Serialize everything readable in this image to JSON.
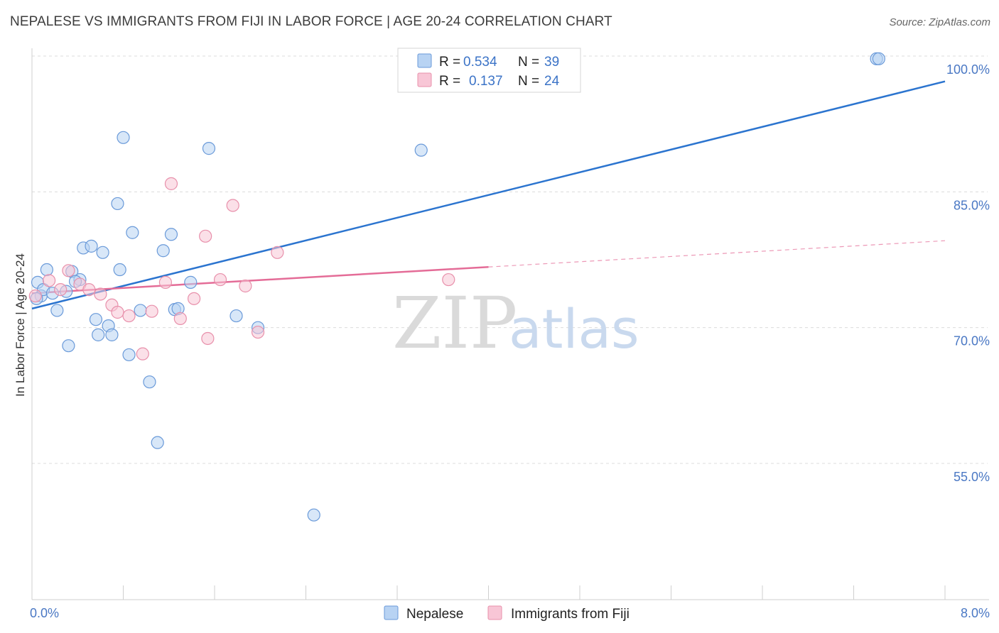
{
  "title": "NEPALESE VS IMMIGRANTS FROM FIJI IN LABOR FORCE | AGE 20-24 CORRELATION CHART",
  "source": "Source: ZipAtlas.com",
  "watermark": {
    "zip": "ZIP",
    "atlas": "atlas"
  },
  "colors": {
    "blue_fill": "#b8d3f3",
    "blue_stroke": "#6a9ad9",
    "blue_line": "#2b74cf",
    "pink_fill": "#f8c6d6",
    "pink_stroke": "#e890ab",
    "pink_line": "#e46c97",
    "tick_text": "#4a78c4",
    "grid": "#dcdcdc"
  },
  "legend": {
    "rows": [
      {
        "series": "blue",
        "r_label": "R =",
        "r_value": "0.534",
        "n_label": "N =",
        "n_value": "39"
      },
      {
        "series": "pink",
        "r_label": "R =",
        "r_value": "0.137",
        "n_label": "N =",
        "n_value": "24"
      }
    ]
  },
  "chart_data": {
    "type": "scatter",
    "title": "NEPALESE VS IMMIGRANTS FROM FIJI IN LABOR FORCE | AGE 20-24 CORRELATION CHART",
    "xlabel": "",
    "ylabel": "In Labor Force | Age 20-24",
    "xlim": [
      0,
      8
    ],
    "ylim": [
      40,
      101.5
    ],
    "x_tick_labels": [
      "0.0%",
      "8.0%"
    ],
    "y_ticks": [
      55,
      70,
      85,
      100
    ],
    "y_tick_labels": [
      "55.0%",
      "70.0%",
      "85.0%",
      "100.0%"
    ],
    "grid": true,
    "legend_position": "top-center",
    "series": [
      {
        "name": "Nepalese",
        "color": "blue",
        "r": 0.534,
        "n": 39,
        "trend": {
          "x": [
            0.0,
            8.0
          ],
          "y": [
            72.1,
            97.2
          ],
          "dashed_from": null
        },
        "points": [
          [
            0.05,
            75.0
          ],
          [
            0.08,
            73.5
          ],
          [
            0.1,
            74.2
          ],
          [
            0.13,
            76.4
          ],
          [
            0.18,
            73.8
          ],
          [
            0.22,
            71.9
          ],
          [
            0.3,
            74.0
          ],
          [
            0.32,
            68.0
          ],
          [
            0.35,
            76.2
          ],
          [
            0.42,
            75.3
          ],
          [
            0.38,
            75.1
          ],
          [
            0.45,
            78.8
          ],
          [
            0.52,
            79.0
          ],
          [
            0.56,
            70.9
          ],
          [
            0.58,
            69.2
          ],
          [
            0.62,
            78.3
          ],
          [
            0.67,
            70.2
          ],
          [
            0.7,
            69.2
          ],
          [
            0.75,
            83.7
          ],
          [
            0.77,
            76.4
          ],
          [
            0.8,
            91.0
          ],
          [
            0.85,
            67.0
          ],
          [
            0.88,
            80.5
          ],
          [
            0.95,
            71.9
          ],
          [
            1.03,
            64.0
          ],
          [
            1.1,
            57.3
          ],
          [
            1.15,
            78.5
          ],
          [
            1.22,
            80.3
          ],
          [
            1.25,
            72.0
          ],
          [
            1.28,
            72.1
          ],
          [
            1.39,
            75.0
          ],
          [
            1.55,
            89.8
          ],
          [
            1.79,
            71.3
          ],
          [
            1.98,
            70.0
          ],
          [
            2.47,
            49.3
          ],
          [
            3.41,
            89.6
          ],
          [
            7.4,
            99.7
          ],
          [
            7.42,
            99.7
          ],
          [
            0.04,
            73.2
          ]
        ]
      },
      {
        "name": "Immigrants from Fiji",
        "color": "pink",
        "r": 0.137,
        "n": 24,
        "trend": {
          "x": [
            0.0,
            8.0
          ],
          "y": [
            73.8,
            79.6
          ],
          "solid_until": 4.0
        },
        "points": [
          [
            0.03,
            73.5
          ],
          [
            0.15,
            75.2
          ],
          [
            0.25,
            74.2
          ],
          [
            0.32,
            76.3
          ],
          [
            0.42,
            74.8
          ],
          [
            0.5,
            74.2
          ],
          [
            0.6,
            73.7
          ],
          [
            0.7,
            72.5
          ],
          [
            0.75,
            71.7
          ],
          [
            0.85,
            71.3
          ],
          [
            0.97,
            67.1
          ],
          [
            1.05,
            71.8
          ],
          [
            1.17,
            75.0
          ],
          [
            1.22,
            85.9
          ],
          [
            1.3,
            71.0
          ],
          [
            1.42,
            73.2
          ],
          [
            1.52,
            80.1
          ],
          [
            1.54,
            68.8
          ],
          [
            1.65,
            75.3
          ],
          [
            1.76,
            83.5
          ],
          [
            1.87,
            74.6
          ],
          [
            1.98,
            69.5
          ],
          [
            2.15,
            78.3
          ],
          [
            3.65,
            75.3
          ]
        ]
      }
    ]
  },
  "bottom_legend": {
    "items": [
      {
        "series": "blue",
        "label": "Nepalese"
      },
      {
        "series": "pink",
        "label": "Immigrants from Fiji"
      }
    ]
  }
}
